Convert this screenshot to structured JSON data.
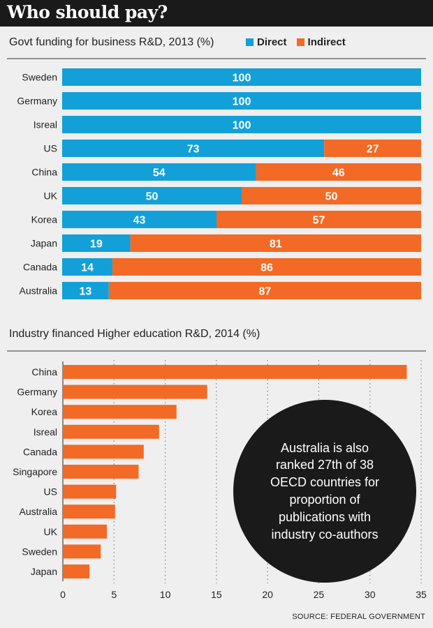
{
  "title": "Who should pay?",
  "source": "SOURCE: FEDERAL GOVERNMENT",
  "note": "Australia is also ranked 27th of 38 OECD countries for proportion of publications with industry co-authors",
  "chart_data": [
    {
      "type": "bar",
      "orientation": "horizontal",
      "stacked": true,
      "title": "Govt funding for business R&D, 2013 (%)",
      "categories": [
        "Sweden",
        "Germany",
        "Isreal",
        "US",
        "China",
        "UK",
        "Korea",
        "Japan",
        "Canada",
        "Australia"
      ],
      "series": [
        {
          "name": "Direct",
          "color": "#13a0d8",
          "values": [
            100,
            100,
            100,
            73,
            54,
            50,
            43,
            19,
            14,
            13
          ]
        },
        {
          "name": "Indirect",
          "color": "#f26a25",
          "values": [
            0,
            0,
            0,
            27,
            46,
            50,
            57,
            81,
            86,
            87
          ]
        }
      ],
      "xlim": [
        0,
        100
      ],
      "data_labels": true,
      "legend": "top-right"
    },
    {
      "type": "bar",
      "orientation": "horizontal",
      "title": "Industry financed Higher education R&D, 2014 (%)",
      "categories": [
        "China",
        "Germany",
        "Korea",
        "Isreal",
        "Canada",
        "Singapore",
        "US",
        "Australia",
        "UK",
        "Sweden",
        "Japan"
      ],
      "values": [
        33.6,
        14.1,
        11.1,
        9.4,
        7.9,
        7.4,
        5.2,
        5.1,
        4.3,
        3.7,
        2.6
      ],
      "color": "#f26a25",
      "xlim": [
        0,
        35
      ],
      "xticks": [
        "0",
        "5",
        "10",
        "15",
        "20",
        "25",
        "30",
        "35"
      ],
      "grid": "vertical dotted"
    }
  ]
}
